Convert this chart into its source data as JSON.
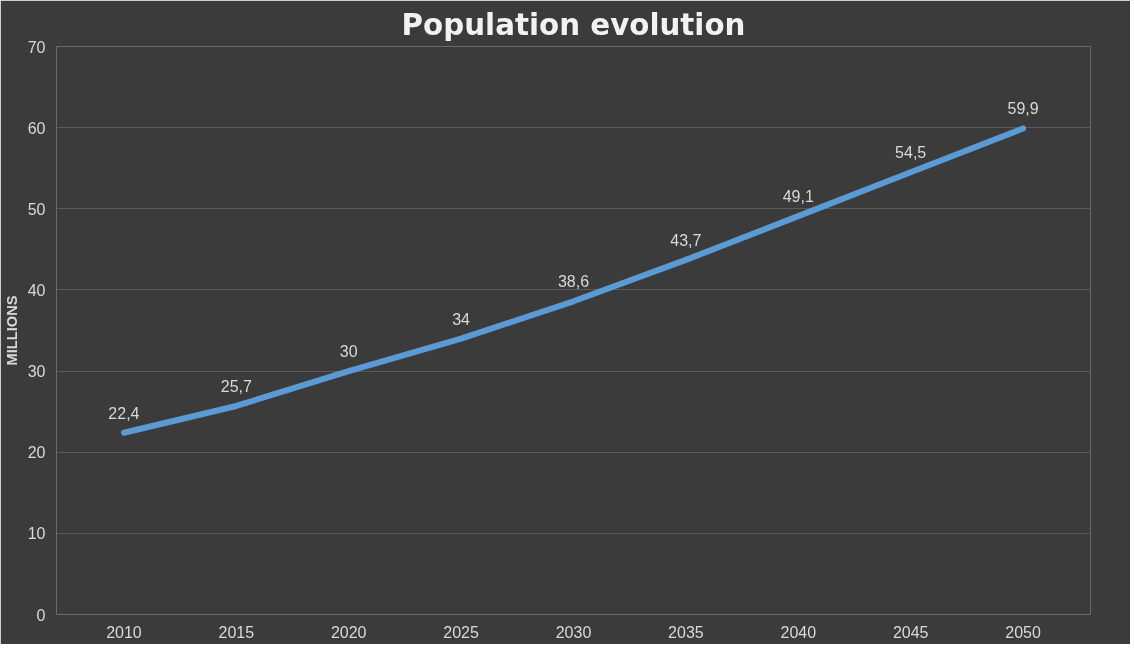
{
  "chart_data": {
    "type": "line",
    "title": "Population evolution",
    "ylabel": "MILLIONS",
    "categories": [
      "2010",
      "2015",
      "2020",
      "2025",
      "2030",
      "2035",
      "2040",
      "2045",
      "2050"
    ],
    "series": [
      {
        "color": "#5b9bd5",
        "values": [
          22.4,
          25.7,
          30,
          34,
          38.6,
          43.7,
          49.1,
          54.5,
          59.9
        ],
        "value_labels": [
          "22,4",
          "25,7",
          "30",
          "34",
          "38,6",
          "43,7",
          "49,1",
          "54,5",
          "59,9"
        ]
      }
    ],
    "ylim": [
      0,
      70
    ],
    "yticks": [
      0,
      10,
      20,
      30,
      40,
      50,
      60,
      70
    ],
    "grid": "y",
    "marker": "none",
    "line_style": "solid"
  }
}
